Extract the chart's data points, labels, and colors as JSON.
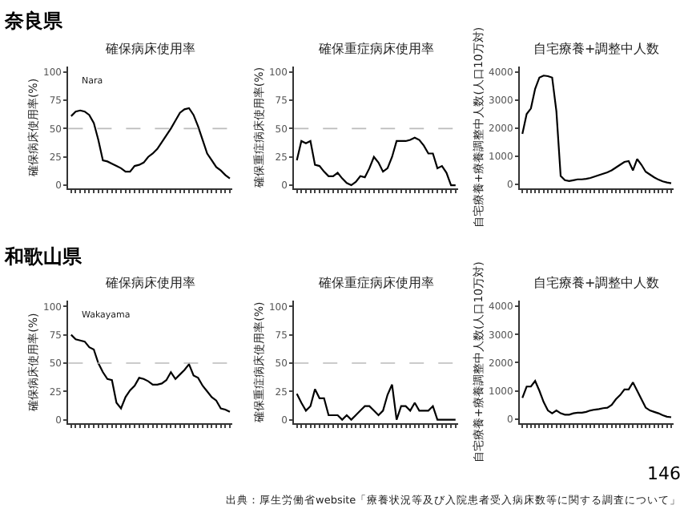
{
  "chart_data": [
    {
      "type": "line",
      "title": "確保病床使用率",
      "ylabel": "確保病床使用率(%)",
      "annotations": [
        "奈良県",
        "Nara"
      ],
      "categories": [
        null,
        null,
        null,
        null,
        null,
        null,
        null,
        null,
        null,
        null,
        null,
        null,
        null,
        null,
        null,
        null,
        null,
        null,
        null,
        null,
        null,
        null,
        null,
        null,
        null,
        null,
        null,
        null,
        null,
        null,
        null,
        null,
        null,
        null,
        null,
        null
      ],
      "series": [
        {
          "color": "#000000",
          "values": [
            61,
            65,
            66,
            65,
            62,
            55,
            40,
            22,
            21,
            19,
            17,
            15,
            12,
            12,
            17,
            18,
            20,
            25,
            28,
            32,
            38,
            44,
            50,
            57,
            64,
            67,
            68,
            62,
            52,
            40,
            28,
            22,
            16,
            13,
            9,
            6
          ]
        }
      ],
      "ylim": [
        -3,
        105
      ],
      "yticks": [
        0,
        25,
        50,
        75,
        100
      ],
      "ref_lines": [
        {
          "axis": "y",
          "value": 50,
          "color": "#bbbbbb",
          "line_style": "dashed"
        }
      ]
    },
    {
      "type": "line",
      "title": "確保重症病床使用率",
      "ylabel": "確保重症病床使用率(%)",
      "categories": [
        null,
        null,
        null,
        null,
        null,
        null,
        null,
        null,
        null,
        null,
        null,
        null,
        null,
        null,
        null,
        null,
        null,
        null,
        null,
        null,
        null,
        null,
        null,
        null,
        null,
        null,
        null,
        null,
        null,
        null,
        null,
        null,
        null,
        null,
        null,
        null
      ],
      "series": [
        {
          "color": "#000000",
          "values": [
            22,
            39,
            37,
            39,
            18,
            17,
            12,
            8,
            8,
            11,
            6,
            2,
            0,
            3,
            8,
            7,
            15,
            25,
            20,
            12,
            15,
            25,
            39,
            39,
            39,
            40,
            42,
            40,
            35,
            28,
            28,
            15,
            17,
            11,
            0,
            0
          ]
        }
      ],
      "ylim": [
        -3,
        105
      ],
      "yticks": [
        0,
        25,
        50,
        75,
        100
      ],
      "ref_lines": [
        {
          "axis": "y",
          "value": 50,
          "color": "#bbbbbb",
          "line_style": "dashed"
        }
      ]
    },
    {
      "type": "line",
      "title": "自宅療養+調整中人数",
      "ylabel": "自宅療養+療養調整中人数(人口10万対)",
      "categories": [
        null,
        null,
        null,
        null,
        null,
        null,
        null,
        null,
        null,
        null,
        null,
        null,
        null,
        null,
        null,
        null,
        null,
        null,
        null,
        null,
        null,
        null,
        null,
        null,
        null,
        null,
        null,
        null,
        null,
        null,
        null,
        null,
        null,
        null,
        null,
        null
      ],
      "series": [
        {
          "color": "#000000",
          "values": [
            1800,
            2500,
            2700,
            3400,
            3800,
            3870,
            3850,
            3800,
            2600,
            300,
            150,
            120,
            150,
            180,
            180,
            200,
            230,
            280,
            330,
            380,
            430,
            500,
            600,
            700,
            800,
            830,
            500,
            900,
            700,
            450,
            350,
            250,
            170,
            110,
            70,
            40
          ]
        }
      ],
      "ylim": [
        -150,
        4200
      ],
      "yticks": [
        0,
        1000,
        2000,
        3000,
        4000
      ]
    },
    {
      "type": "line",
      "title": "確保病床使用率",
      "ylabel": "確保病床使用率(%)",
      "annotations": [
        "和歌山県",
        "Wakayama"
      ],
      "categories": [
        null,
        null,
        null,
        null,
        null,
        null,
        null,
        null,
        null,
        null,
        null,
        null,
        null,
        null,
        null,
        null,
        null,
        null,
        null,
        null,
        null,
        null,
        null,
        null,
        null,
        null,
        null,
        null,
        null,
        null,
        null,
        null,
        null,
        null,
        null,
        null
      ],
      "series": [
        {
          "color": "#000000",
          "values": [
            75,
            71,
            70,
            69,
            64,
            62,
            50,
            42,
            36,
            35,
            15,
            10,
            20,
            26,
            30,
            37,
            36,
            34,
            31,
            31,
            32,
            35,
            42,
            36,
            40,
            44,
            49,
            39,
            37,
            30,
            25,
            20,
            17,
            10,
            9,
            7
          ]
        }
      ],
      "ylim": [
        -3,
        105
      ],
      "yticks": [
        0,
        25,
        50,
        75,
        100
      ],
      "ref_lines": [
        {
          "axis": "y",
          "value": 50,
          "color": "#bbbbbb",
          "line_style": "dashed"
        }
      ]
    },
    {
      "type": "line",
      "title": "確保重症病床使用率",
      "ylabel": "確保重症病床使用率(%)",
      "categories": [
        null,
        null,
        null,
        null,
        null,
        null,
        null,
        null,
        null,
        null,
        null,
        null,
        null,
        null,
        null,
        null,
        null,
        null,
        null,
        null,
        null,
        null,
        null,
        null,
        null,
        null,
        null,
        null,
        null,
        null,
        null,
        null,
        null,
        null,
        null,
        null
      ],
      "series": [
        {
          "color": "#000000",
          "values": [
            23,
            15,
            8,
            12,
            27,
            19,
            19,
            4,
            4,
            4,
            0,
            4,
            0,
            4,
            8,
            12,
            12,
            8,
            4,
            8,
            22,
            31,
            0,
            12,
            12,
            8,
            15,
            8,
            8,
            8,
            12,
            0,
            0,
            0,
            0,
            0
          ]
        }
      ],
      "ylim": [
        -3,
        105
      ],
      "yticks": [
        0,
        25,
        50,
        75,
        100
      ],
      "ref_lines": [
        {
          "axis": "y",
          "value": 50,
          "color": "#bbbbbb",
          "line_style": "dashed"
        }
      ]
    },
    {
      "type": "line",
      "title": "自宅療養+調整中人数",
      "ylabel": "自宅療養+療養調整中人数(人口10万対)",
      "annotations": [
        "146",
        "出典：厚生労働省website「療養状況等及び入院患者受入病床数等に関する調査について」"
      ],
      "categories": [
        null,
        null,
        null,
        null,
        null,
        null,
        null,
        null,
        null,
        null,
        null,
        null,
        null,
        null,
        null,
        null,
        null,
        null,
        null,
        null,
        null,
        null,
        null,
        null,
        null,
        null,
        null,
        null,
        null,
        null,
        null,
        null,
        null,
        null,
        null,
        null
      ],
      "series": [
        {
          "color": "#000000",
          "values": [
            750,
            1150,
            1150,
            1350,
            1000,
            600,
            300,
            200,
            300,
            200,
            150,
            150,
            200,
            220,
            220,
            250,
            300,
            330,
            350,
            380,
            400,
            500,
            700,
            850,
            1050,
            1050,
            1300,
            1000,
            700,
            400,
            300,
            250,
            200,
            130,
            80,
            60
          ]
        }
      ],
      "ylim": [
        -150,
        4200
      ],
      "yticks": [
        0,
        1000,
        2000,
        3000,
        4000
      ]
    }
  ]
}
